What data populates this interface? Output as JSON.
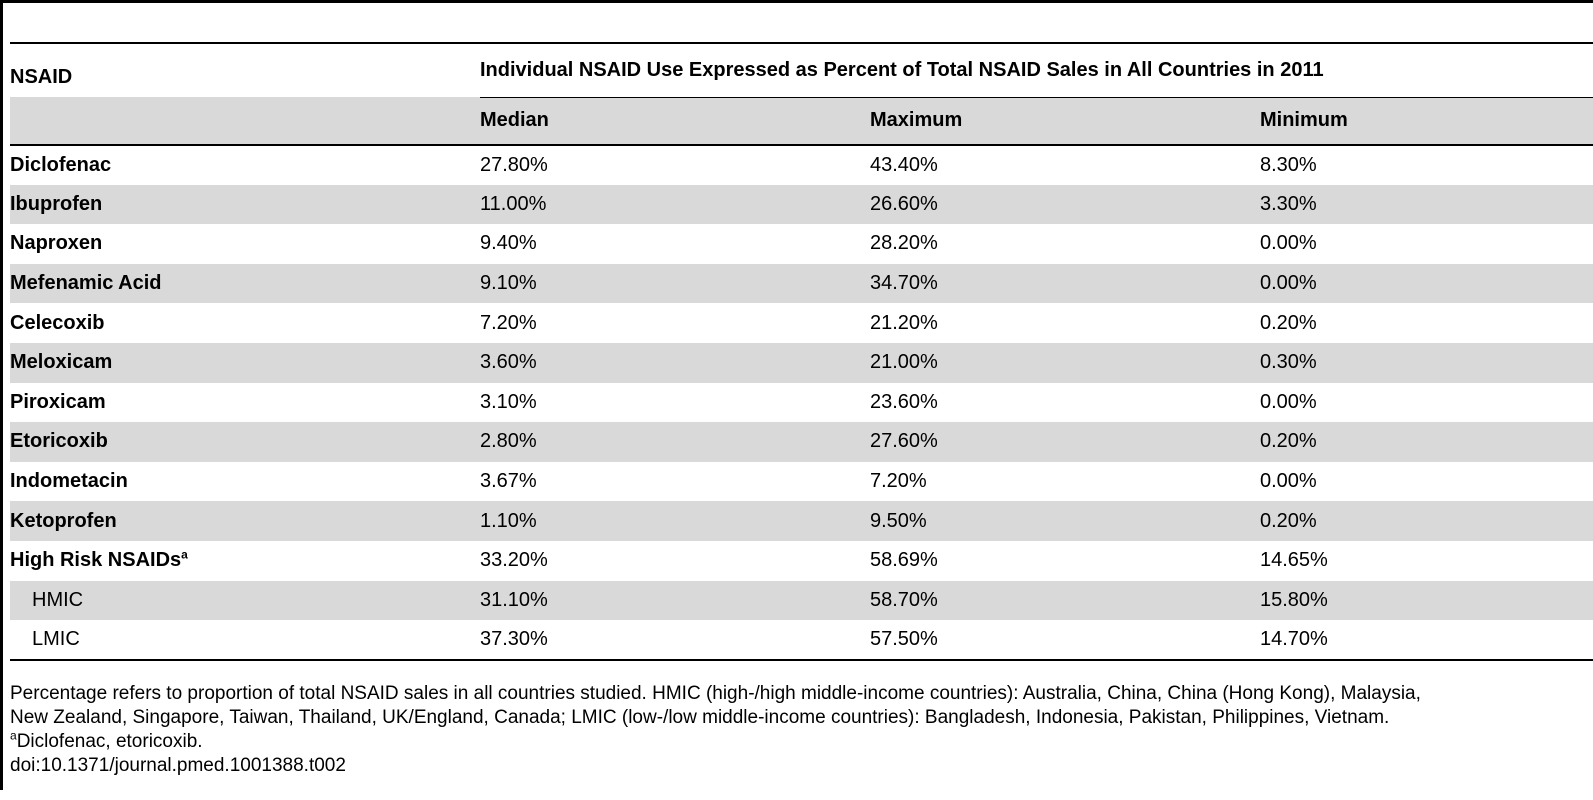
{
  "table": {
    "col_nsaid": "NSAID",
    "span_title": "Individual NSAID Use Expressed as Percent of Total NSAID Sales in All Countries in 2011",
    "col_median": "Median",
    "col_maximum": "Maximum",
    "col_minimum": "Minimum",
    "rows": [
      {
        "name": "Diclofenac",
        "median": "27.80%",
        "maximum": "43.40%",
        "minimum": "8.30%"
      },
      {
        "name": "Ibuprofen",
        "median": "11.00%",
        "maximum": "26.60%",
        "minimum": "3.30%"
      },
      {
        "name": "Naproxen",
        "median": "9.40%",
        "maximum": "28.20%",
        "minimum": "0.00%"
      },
      {
        "name": "Mefenamic Acid",
        "median": "9.10%",
        "maximum": "34.70%",
        "minimum": "0.00%"
      },
      {
        "name": "Celecoxib",
        "median": "7.20%",
        "maximum": "21.20%",
        "minimum": "0.20%"
      },
      {
        "name": "Meloxicam",
        "median": "3.60%",
        "maximum": "21.00%",
        "minimum": "0.30%"
      },
      {
        "name": "Piroxicam",
        "median": "3.10%",
        "maximum": "23.60%",
        "minimum": "0.00%"
      },
      {
        "name": "Etoricoxib",
        "median": "2.80%",
        "maximum": "27.60%",
        "minimum": "0.20%"
      },
      {
        "name": "Indometacin",
        "median": "3.67%",
        "maximum": "7.20%",
        "minimum": "0.00%"
      },
      {
        "name": "Ketoprofen",
        "median": "1.10%",
        "maximum": "9.50%",
        "minimum": "0.20%"
      },
      {
        "name": "High Risk NSAIDs",
        "name_sup": "a",
        "median": "33.20%",
        "maximum": "58.69%",
        "minimum": "14.65%"
      },
      {
        "name": "HMIC",
        "median": "31.10%",
        "maximum": "58.70%",
        "minimum": "15.80%"
      },
      {
        "name": "LMIC",
        "median": "37.30%",
        "maximum": "57.50%",
        "minimum": "14.70%"
      }
    ]
  },
  "footnotes": {
    "line1": "Percentage refers to proportion of total NSAID sales in all countries studied. HMIC (high-/high middle-income countries): Australia, China, China (Hong Kong), Malaysia,",
    "line2": "New Zealand, Singapore, Taiwan, Thailand, UK/England, Canada; LMIC (low-/low middle-income countries): Bangladesh, Indonesia, Pakistan, Philippines, Vietnam.",
    "note_a_marker": "a",
    "note_a_text": "Diclofenac, etoricoxib.",
    "doi": "doi:10.1371/journal.pmed.1001388.t002"
  }
}
